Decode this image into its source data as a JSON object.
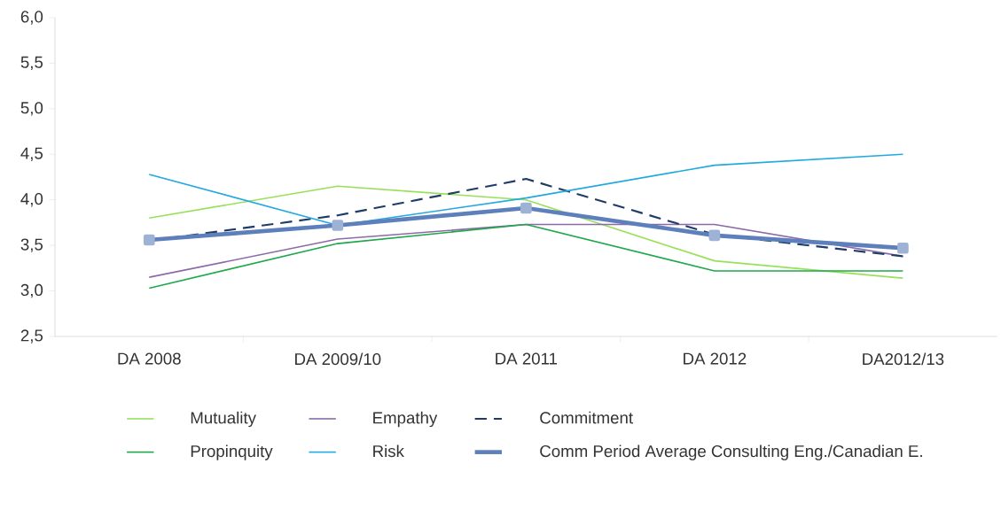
{
  "chart_data": {
    "type": "line",
    "categories": [
      "DA 2008",
      "DA 2009/10",
      "DA 2011",
      "DA 2012",
      "DA2012/13"
    ],
    "series": [
      {
        "name": "Mutuality",
        "color": "#99e05a",
        "values": [
          3.8,
          4.15,
          4.0,
          3.33,
          3.14
        ]
      },
      {
        "name": "Empathy",
        "color": "#8c6aa8",
        "values": [
          3.15,
          3.57,
          3.73,
          3.73,
          3.38
        ]
      },
      {
        "name": "Commitment",
        "color": "#1f3c66",
        "line_style": "dashed",
        "values": [
          3.55,
          3.83,
          4.23,
          3.62,
          3.38
        ]
      },
      {
        "name": "Propinquity",
        "color": "#1fa84a",
        "values": [
          3.03,
          3.52,
          3.73,
          3.22,
          3.22
        ]
      },
      {
        "name": "Risk",
        "color": "#22a9df",
        "values": [
          4.28,
          3.72,
          4.02,
          4.38,
          4.5
        ]
      },
      {
        "name": "Comm Period Average Consulting Eng./Canadian E.",
        "color": "#5d7fbb",
        "marker": "square",
        "values": [
          3.56,
          3.72,
          3.91,
          3.61,
          3.47
        ]
      }
    ],
    "ylim": [
      2.5,
      6.0
    ],
    "yticks": [
      {
        "value": 2.5,
        "label": "2,5"
      },
      {
        "value": 3.0,
        "label": "3,0"
      },
      {
        "value": 3.5,
        "label": "3,5"
      },
      {
        "value": 4.0,
        "label": "4,0"
      },
      {
        "value": 4.5,
        "label": "4,5"
      },
      {
        "value": 5.0,
        "label": "5,0"
      },
      {
        "value": 5.5,
        "label": "5,5"
      },
      {
        "value": 6.0,
        "label": "6,0"
      }
    ],
    "legend": "bottom",
    "grid": false
  }
}
